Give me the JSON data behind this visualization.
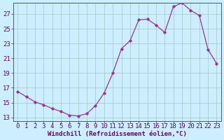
{
  "x": [
    0,
    1,
    2,
    3,
    4,
    5,
    6,
    7,
    8,
    9,
    10,
    11,
    12,
    13,
    14,
    15,
    16,
    17,
    18,
    19,
    20,
    21,
    22,
    23
  ],
  "y": [
    16.5,
    15.8,
    15.1,
    14.7,
    14.2,
    13.8,
    13.3,
    13.2,
    13.5,
    14.6,
    16.3,
    19.0,
    22.3,
    23.4,
    26.2,
    26.3,
    25.5,
    24.5,
    28.0,
    28.5,
    27.5,
    26.8,
    22.2,
    20.3
  ],
  "background_color": "#cceeff",
  "line_color": "#993399",
  "marker_color": "#993399",
  "grid_color": "#aacccc",
  "xlabel": "Windchill (Refroidissement éolien,°C)",
  "ylabel_ticks": [
    13,
    15,
    17,
    19,
    21,
    23,
    25,
    27
  ],
  "xlim": [
    -0.5,
    23.5
  ],
  "ylim": [
    12.5,
    28.5
  ],
  "xtick_labels": [
    "0",
    "1",
    "2",
    "3",
    "4",
    "5",
    "6",
    "7",
    "8",
    "9",
    "10",
    "11",
    "12",
    "13",
    "14",
    "15",
    "16",
    "17",
    "18",
    "19",
    "20",
    "21",
    "22",
    "23"
  ],
  "xlabel_fontsize": 6.5,
  "tick_fontsize": 6.5
}
